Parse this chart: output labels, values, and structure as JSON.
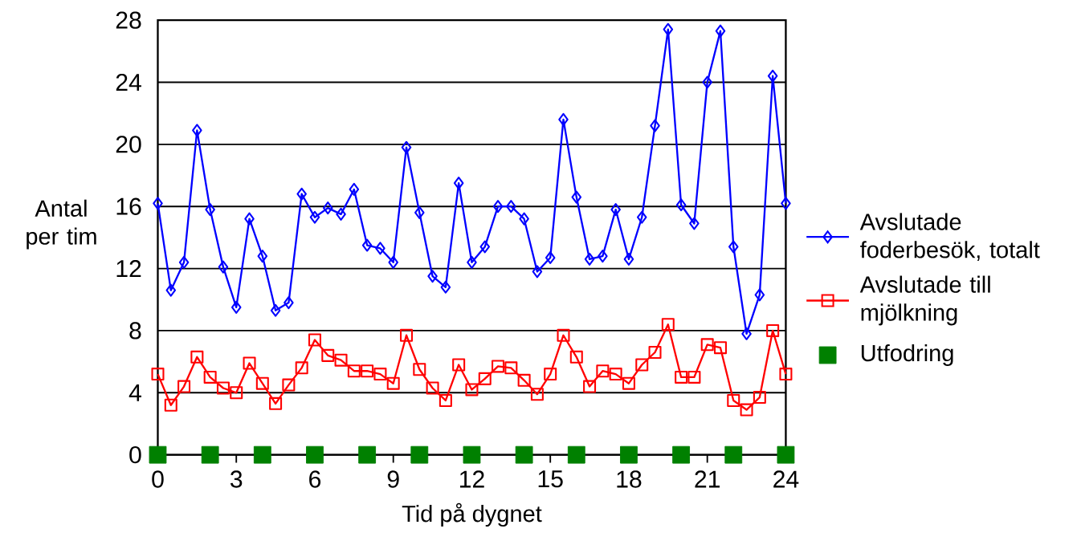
{
  "chart_data": {
    "type": "line",
    "xlabel": "Tid på dygnet",
    "ylabel": "Antal per tim",
    "xlim": [
      0,
      24
    ],
    "xticks": [
      0,
      3,
      6,
      9,
      12,
      15,
      18,
      21,
      24
    ],
    "ylim": [
      0,
      28
    ],
    "yticks": [
      0,
      4,
      8,
      12,
      16,
      20,
      24,
      28
    ],
    "grid": "y",
    "legend": "right",
    "line_style": "solid",
    "series": [
      {
        "name": "Avslutade foderbesök, totalt",
        "color": "#0000ff",
        "marker": "diamond",
        "x": [
          0,
          0.5,
          1,
          1.5,
          2,
          2.5,
          3,
          3.5,
          4,
          4.5,
          5,
          5.5,
          6,
          6.5,
          7,
          7.5,
          8,
          8.5,
          9,
          9.5,
          10,
          10.5,
          11,
          11.5,
          12,
          12.5,
          13,
          13.5,
          14,
          14.5,
          15,
          15.5,
          16,
          16.5,
          17,
          17.5,
          18,
          18.5,
          19,
          19.5,
          20,
          20.5,
          21,
          21.5,
          22,
          22.5,
          23,
          23.5,
          24
        ],
        "values": [
          16.2,
          10.6,
          12.4,
          20.9,
          15.8,
          12.1,
          9.5,
          15.2,
          12.8,
          9.3,
          9.8,
          16.8,
          15.3,
          15.9,
          15.5,
          17.1,
          13.5,
          13.3,
          12.4,
          19.8,
          15.6,
          11.5,
          10.8,
          17.5,
          12.4,
          13.4,
          16.0,
          16.0,
          15.2,
          11.8,
          12.7,
          21.6,
          16.6,
          12.6,
          12.8,
          15.8,
          12.6,
          15.3,
          21.2,
          27.4,
          16.1,
          14.9,
          24.0,
          27.3,
          13.4,
          7.8,
          10.3,
          24.4,
          16.2
        ]
      },
      {
        "name": "Avslutade till mjölkning",
        "color": "#ff0000",
        "marker": "square",
        "x": [
          0,
          0.5,
          1,
          1.5,
          2,
          2.5,
          3,
          3.5,
          4,
          4.5,
          5,
          5.5,
          6,
          6.5,
          7,
          7.5,
          8,
          8.5,
          9,
          9.5,
          10,
          10.5,
          11,
          11.5,
          12,
          12.5,
          13,
          13.5,
          14,
          14.5,
          15,
          15.5,
          16,
          16.5,
          17,
          17.5,
          18,
          18.5,
          19,
          19.5,
          20,
          20.5,
          21,
          21.5,
          22,
          22.5,
          23,
          23.5,
          24
        ],
        "values": [
          5.2,
          3.2,
          4.4,
          6.3,
          5.0,
          4.3,
          4.0,
          5.9,
          4.6,
          3.3,
          4.5,
          5.6,
          7.4,
          6.4,
          6.1,
          5.4,
          5.4,
          5.2,
          4.6,
          7.7,
          5.5,
          4.3,
          3.5,
          5.8,
          4.2,
          4.9,
          5.7,
          5.6,
          4.8,
          3.9,
          5.2,
          7.7,
          6.3,
          4.4,
          5.4,
          5.2,
          4.6,
          5.8,
          6.6,
          8.4,
          5.0,
          5.0,
          7.1,
          6.9,
          3.5,
          2.9,
          3.7,
          8.0,
          5.2
        ]
      },
      {
        "name": "Utfodring",
        "type": "scatter",
        "color": "#008000",
        "marker": "square",
        "x": [
          0,
          2,
          4,
          6,
          8,
          10,
          12,
          14,
          16,
          18,
          20,
          22,
          24
        ],
        "values": [
          0,
          0,
          0,
          0,
          0,
          0,
          0,
          0,
          0,
          0,
          0,
          0,
          0
        ]
      }
    ]
  }
}
